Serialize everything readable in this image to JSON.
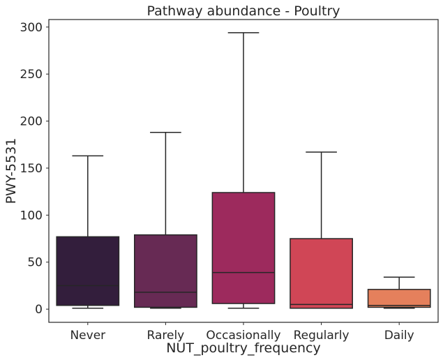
{
  "chart_data": {
    "type": "box",
    "title": "Pathway abundance - Poultry",
    "xlabel": "NUT_poultry_frequency",
    "ylabel": "PWY-5531",
    "ylim": [
      -14,
      308
    ],
    "yticks": [
      0,
      50,
      100,
      150,
      200,
      250,
      300
    ],
    "grid": false,
    "categories": [
      "Never",
      "Rarely",
      "Occasionally",
      "Regularly",
      "Daily"
    ],
    "boxes": [
      {
        "category": "Never",
        "whisker_low": 1,
        "q1": 4,
        "median": 25,
        "q3": 77,
        "whisker_high": 163,
        "color": "#331e3c"
      },
      {
        "category": "Rarely",
        "whisker_low": 1,
        "q1": 2,
        "median": 18,
        "q3": 79,
        "whisker_high": 188,
        "color": "#672a54"
      },
      {
        "category": "Occasionally",
        "whisker_low": 1,
        "q1": 6,
        "median": 39,
        "q3": 124,
        "whisker_high": 294,
        "color": "#9d2a5d"
      },
      {
        "category": "Regularly",
        "whisker_low": 1,
        "q1": 1,
        "median": 5,
        "q3": 75,
        "whisker_high": 167,
        "color": "#d04656"
      },
      {
        "category": "Daily",
        "whisker_low": 1,
        "q1": 2,
        "median": 4,
        "q3": 21,
        "whisker_high": 34,
        "color": "#e5805c"
      }
    ]
  }
}
